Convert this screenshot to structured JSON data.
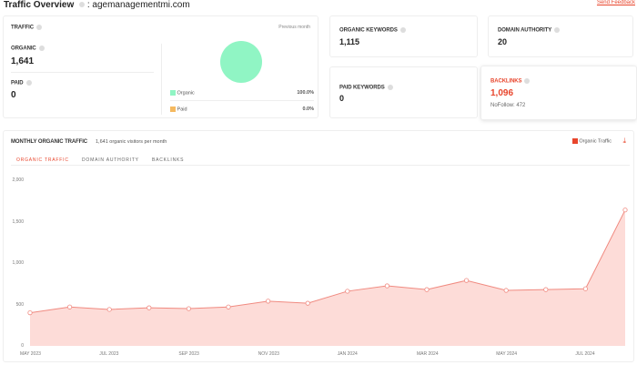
{
  "header": {
    "title": "Traffic Overview",
    "domain": ": agemanagementmi.com",
    "feedback": "Send Feedback"
  },
  "traffic": {
    "label": "TRAFFIC",
    "period": "Previous month",
    "organic_label": "ORGANIC",
    "organic_value": "1,641",
    "paid_label": "PAID",
    "paid_value": "0",
    "legend": [
      {
        "name": "Organic",
        "pct": "100.0%",
        "color": "#90f5c4"
      },
      {
        "name": "Paid",
        "pct": "0.0%",
        "color": "#f5b960"
      }
    ]
  },
  "stats": {
    "organic_keywords_label": "ORGANIC KEYWORDS",
    "organic_keywords": "1,115",
    "domain_authority_label": "DOMAIN AUTHORITY",
    "domain_authority": "20",
    "paid_keywords_label": "PAID KEYWORDS",
    "paid_keywords": "0",
    "backlinks_label": "BACKLINKS",
    "backlinks": "1,096",
    "nofollow": "NoFollow: 472"
  },
  "monthly": {
    "title": "MONTHLY ORGANIC TRAFFIC",
    "subtitle": "1,641 organic visitors per month",
    "legend": "Organic Traffic",
    "tabs": [
      "ORGANIC TRAFFIC",
      "DOMAIN AUTHORITY",
      "BACKLINKS"
    ],
    "active_tab": 0
  },
  "colors": {
    "accent": "#e8452c",
    "line": "#f08a80",
    "fill": "#fddcd8"
  },
  "chart_data": {
    "type": "area",
    "series": [
      {
        "name": "Organic Traffic",
        "values": [
          400,
          470,
          440,
          460,
          450,
          470,
          540,
          515,
          660,
          725,
          680,
          790,
          670,
          680,
          690,
          1641
        ]
      }
    ],
    "x": [
      "May 2023",
      "Jun 2023",
      "Jul 2023",
      "Aug 2023",
      "Sep 2023",
      "Oct 2023",
      "Nov 2023",
      "Dec 2023",
      "Jan 2024",
      "Feb 2024",
      "Mar 2024",
      "Apr 2024",
      "May 2024",
      "Jun 2024",
      "Jul 2024",
      "Aug 2024"
    ],
    "xticks": [
      "MAY 2023",
      "JUL 2023",
      "SEP 2023",
      "NOV 2023",
      "JAN 2024",
      "MAR 2024",
      "MAY 2024",
      "JUL 2024"
    ],
    "yticks": [
      "0",
      "500",
      "1,000",
      "1,500",
      "2,000"
    ],
    "ylim": [
      0,
      2000
    ],
    "grid": false
  }
}
